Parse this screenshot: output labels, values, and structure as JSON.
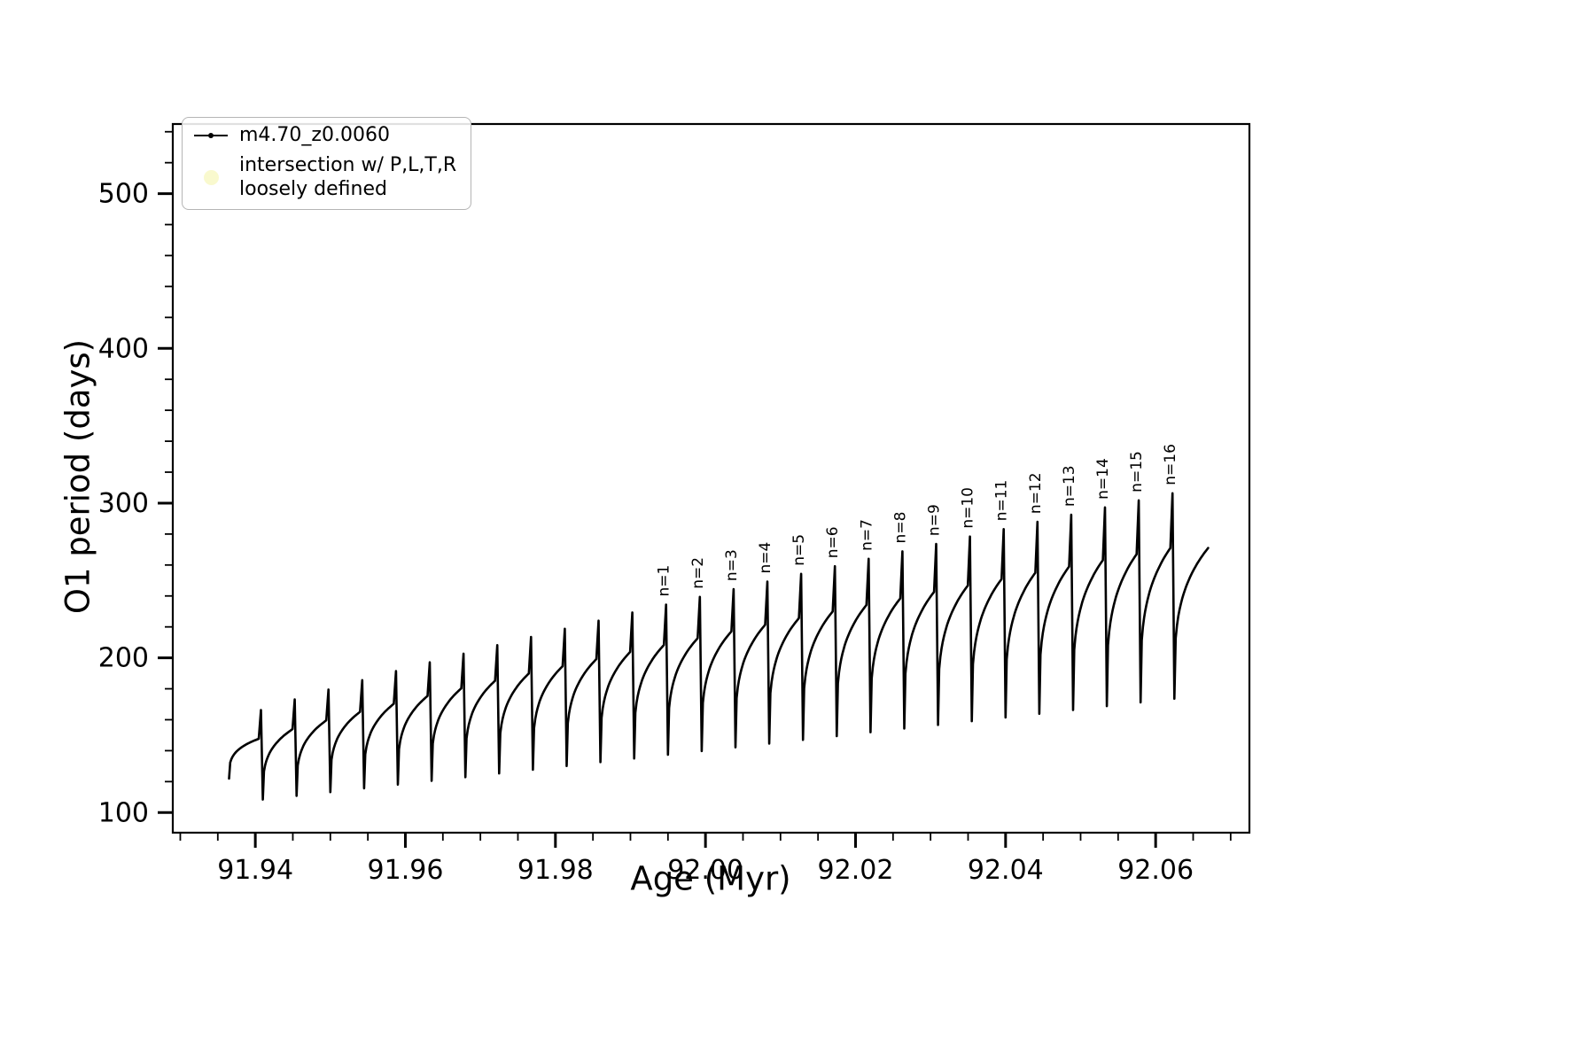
{
  "chart_data": {
    "type": "line",
    "title": "",
    "xlabel": "Age (Myr)",
    "ylabel": "O1 period (days)",
    "xlim": [
      91.929,
      92.0725
    ],
    "ylim": [
      87,
      545
    ],
    "xticks": [
      91.94,
      91.96,
      91.98,
      92.0,
      92.02,
      92.04,
      92.06
    ],
    "xtick_labels": [
      "91.94",
      "91.96",
      "91.98",
      "92.00",
      "92.02",
      "92.04",
      "92.06"
    ],
    "yticks": [
      100,
      200,
      300,
      400,
      500
    ],
    "ytick_labels": [
      "100",
      "200",
      "300",
      "400",
      "500"
    ],
    "minor_x_step": 0.005,
    "minor_y_step": 20,
    "grid": "off",
    "line_color": "#000000",
    "marker": "point",
    "legend": {
      "position": "upper left",
      "entries": [
        {
          "label": "m4.70_z0.0060",
          "marker": "line-with-dot",
          "color": "#000000"
        },
        {
          "label_line1": "intersection w/ P,L,T,R",
          "label_line2": "loosely defined",
          "marker": "circle",
          "color": "#f7f7bd"
        }
      ]
    },
    "annotations": [
      "n=1",
      "n=2",
      "n=3",
      "n=4",
      "n=5",
      "n=6",
      "n=7",
      "n=8",
      "n=9",
      "n=10",
      "n=11",
      "n=12",
      "n=13",
      "n=14",
      "n=15",
      "n=16"
    ],
    "teeth": [
      {
        "x0": 91.9365,
        "x1": 91.941,
        "base": 122.0,
        "plateau": 147.7,
        "spike": 166.3,
        "label": null
      },
      {
        "x0": 91.941,
        "x1": 91.9455,
        "base": 108.4,
        "plateau": 153.9,
        "spike": 173.1,
        "label": null
      },
      {
        "x0": 91.9455,
        "x1": 91.95,
        "base": 110.8,
        "plateau": 159.6,
        "spike": 179.5,
        "label": null
      },
      {
        "x0": 91.95,
        "x1": 91.9545,
        "base": 113.2,
        "plateau": 165.1,
        "spike": 185.6,
        "label": null
      },
      {
        "x0": 91.9545,
        "x1": 91.959,
        "base": 115.7,
        "plateau": 170.3,
        "spike": 191.4,
        "label": null
      },
      {
        "x0": 91.959,
        "x1": 91.9635,
        "base": 118.1,
        "plateau": 175.4,
        "spike": 197.1,
        "label": null
      },
      {
        "x0": 91.9635,
        "x1": 91.968,
        "base": 120.5,
        "plateau": 180.3,
        "spike": 202.7,
        "label": null
      },
      {
        "x0": 91.968,
        "x1": 91.9725,
        "base": 122.9,
        "plateau": 185.2,
        "spike": 208.2,
        "label": null
      },
      {
        "x0": 91.9725,
        "x1": 91.977,
        "base": 125.3,
        "plateau": 189.9,
        "spike": 213.5,
        "label": null
      },
      {
        "x0": 91.977,
        "x1": 91.9815,
        "base": 127.7,
        "plateau": 194.6,
        "spike": 218.8,
        "label": null
      },
      {
        "x0": 91.9815,
        "x1": 91.986,
        "base": 130.1,
        "plateau": 199.2,
        "spike": 224.0,
        "label": null
      },
      {
        "x0": 91.986,
        "x1": 91.9905,
        "base": 132.6,
        "plateau": 203.8,
        "spike": 229.3,
        "label": null
      },
      {
        "x0": 91.9905,
        "x1": 91.995,
        "base": 135.0,
        "plateau": 208.3,
        "spike": 234.4,
        "label": "n=1"
      },
      {
        "x0": 91.995,
        "x1": 91.9995,
        "base": 137.4,
        "plateau": 212.7,
        "spike": 239.4,
        "label": "n=2"
      },
      {
        "x0": 91.9995,
        "x1": 92.004,
        "base": 139.8,
        "plateau": 217.1,
        "spike": 244.4,
        "label": "n=3"
      },
      {
        "x0": 92.004,
        "x1": 92.0085,
        "base": 142.2,
        "plateau": 221.4,
        "spike": 249.3,
        "label": "n=4"
      },
      {
        "x0": 92.0085,
        "x1": 92.013,
        "base": 144.6,
        "plateau": 225.7,
        "spike": 254.3,
        "label": "n=5"
      },
      {
        "x0": 92.013,
        "x1": 92.0175,
        "base": 147.0,
        "plateau": 230.0,
        "spike": 259.2,
        "label": "n=6"
      },
      {
        "x0": 92.0175,
        "x1": 92.022,
        "base": 149.4,
        "plateau": 234.2,
        "spike": 264.0,
        "label": "n=7"
      },
      {
        "x0": 92.022,
        "x1": 92.0265,
        "base": 151.9,
        "plateau": 238.4,
        "spike": 268.8,
        "label": "n=8"
      },
      {
        "x0": 92.0265,
        "x1": 92.031,
        "base": 154.3,
        "plateau": 242.6,
        "spike": 273.6,
        "label": "n=9"
      },
      {
        "x0": 92.031,
        "x1": 92.0355,
        "base": 156.7,
        "plateau": 246.7,
        "spike": 278.4,
        "label": "n=10"
      },
      {
        "x0": 92.0355,
        "x1": 92.04,
        "base": 159.1,
        "plateau": 250.9,
        "spike": 283.2,
        "label": "n=11"
      },
      {
        "x0": 92.04,
        "x1": 92.0445,
        "base": 161.5,
        "plateau": 255.0,
        "spike": 287.9,
        "label": "n=12"
      },
      {
        "x0": 92.0445,
        "x1": 92.049,
        "base": 163.9,
        "plateau": 259.0,
        "spike": 292.5,
        "label": "n=13"
      },
      {
        "x0": 92.049,
        "x1": 92.0535,
        "base": 166.3,
        "plateau": 263.1,
        "spike": 297.2,
        "label": "n=14"
      },
      {
        "x0": 92.0535,
        "x1": 92.058,
        "base": 168.8,
        "plateau": 267.0,
        "spike": 301.8,
        "label": "n=15"
      },
      {
        "x0": 92.058,
        "x1": 92.0625,
        "base": 171.2,
        "plateau": 271.0,
        "spike": 306.4,
        "label": "n=16"
      },
      {
        "x0": 92.0625,
        "x1": 92.067,
        "base": 173.6,
        "plateau": 271.0,
        "spike": null,
        "label": null
      }
    ]
  }
}
